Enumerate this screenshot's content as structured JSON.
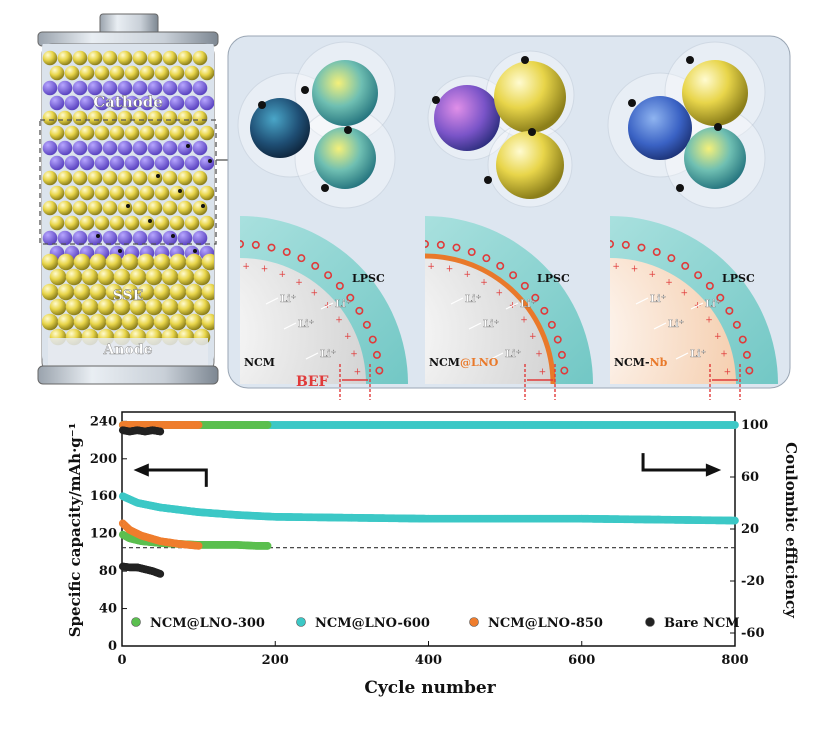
{
  "schematic": {
    "battery_labels": {
      "cathode": "Cathode",
      "sse": "SSE",
      "anode": "Anode"
    },
    "panels": [
      {
        "electrolyte": "LPSC",
        "cathode_label": "NCM",
        "suffix": "",
        "ions": [
          "Li⁺",
          "Li⁺",
          "Li⁺",
          "Li⁺"
        ]
      },
      {
        "electrolyte": "LPSC",
        "cathode_label": "NCM",
        "suffix": "@LNO",
        "ions": [
          "Li⁺",
          "Li⁺",
          "Li⁺",
          "Li⁺"
        ]
      },
      {
        "electrolyte": "LPSC",
        "cathode_label": "NCM-",
        "suffix": "Nb",
        "ions": [
          "Li⁺",
          "Li⁺",
          "Li⁺",
          "Li⁺"
        ]
      }
    ],
    "bef_label": "BEF",
    "colors": {
      "ncm": "#1f5a86",
      "particle_yellow": "#e3d24a",
      "electrolyte": "#7fd3cf",
      "lno": "#e9792a",
      "bef": "#e03a3a",
      "panel_bg": "#dde6f0"
    }
  },
  "chart_data": {
    "type": "scatter",
    "xlabel": "Cycle number",
    "ylabel_left": "Specific capacity/mAh·g⁻¹",
    "ylabel_right": "Coulombic efficiency",
    "xlim": [
      0,
      800
    ],
    "xticks": [
      0,
      200,
      400,
      600,
      800
    ],
    "ylim_left": [
      0,
      250
    ],
    "yticks_left": [
      0,
      40,
      80,
      120,
      160,
      200,
      240
    ],
    "ylim_right": [
      -70,
      110
    ],
    "yticks_right": [
      -60,
      -20,
      20,
      60,
      100
    ],
    "reference_line_y": 105,
    "legend_position": "bottom",
    "series": [
      {
        "name": "NCM@LNO-300",
        "color": "#5bbf4f",
        "capacity": [
          [
            1,
            119
          ],
          [
            10,
            115
          ],
          [
            25,
            112
          ],
          [
            50,
            110
          ],
          [
            75,
            109
          ],
          [
            100,
            108
          ],
          [
            125,
            108
          ],
          [
            150,
            108
          ],
          [
            175,
            107
          ],
          [
            190,
            107
          ]
        ],
        "efficiency": [
          [
            1,
            100
          ],
          [
            50,
            100
          ],
          [
            100,
            100
          ],
          [
            150,
            100
          ],
          [
            190,
            100
          ]
        ]
      },
      {
        "name": "NCM@LNO-600",
        "color": "#3cc8c6",
        "capacity": [
          [
            1,
            160
          ],
          [
            20,
            153
          ],
          [
            50,
            148
          ],
          [
            100,
            143
          ],
          [
            150,
            140
          ],
          [
            200,
            138
          ],
          [
            300,
            137
          ],
          [
            400,
            136
          ],
          [
            500,
            136
          ],
          [
            600,
            136
          ],
          [
            700,
            135
          ],
          [
            800,
            134
          ]
        ],
        "efficiency": [
          [
            1,
            100
          ],
          [
            100,
            100
          ],
          [
            200,
            100
          ],
          [
            400,
            100
          ],
          [
            600,
            100
          ],
          [
            800,
            100
          ]
        ]
      },
      {
        "name": "NCM@LNO-850",
        "color": "#ef7d2d",
        "capacity": [
          [
            1,
            131
          ],
          [
            10,
            124
          ],
          [
            25,
            118
          ],
          [
            50,
            112
          ],
          [
            75,
            109
          ],
          [
            100,
            107
          ]
        ],
        "efficiency": [
          [
            1,
            100
          ],
          [
            25,
            100
          ],
          [
            50,
            100
          ],
          [
            75,
            100
          ],
          [
            100,
            100
          ]
        ]
      },
      {
        "name": "Bare NCM",
        "color": "#222222",
        "capacity": [
          [
            1,
            85
          ],
          [
            10,
            84
          ],
          [
            20,
            84
          ],
          [
            30,
            82
          ],
          [
            40,
            80
          ],
          [
            50,
            77
          ]
        ],
        "efficiency": [
          [
            1,
            96
          ],
          [
            10,
            95
          ],
          [
            20,
            96
          ],
          [
            30,
            95
          ],
          [
            40,
            96
          ],
          [
            50,
            95
          ]
        ]
      }
    ]
  }
}
